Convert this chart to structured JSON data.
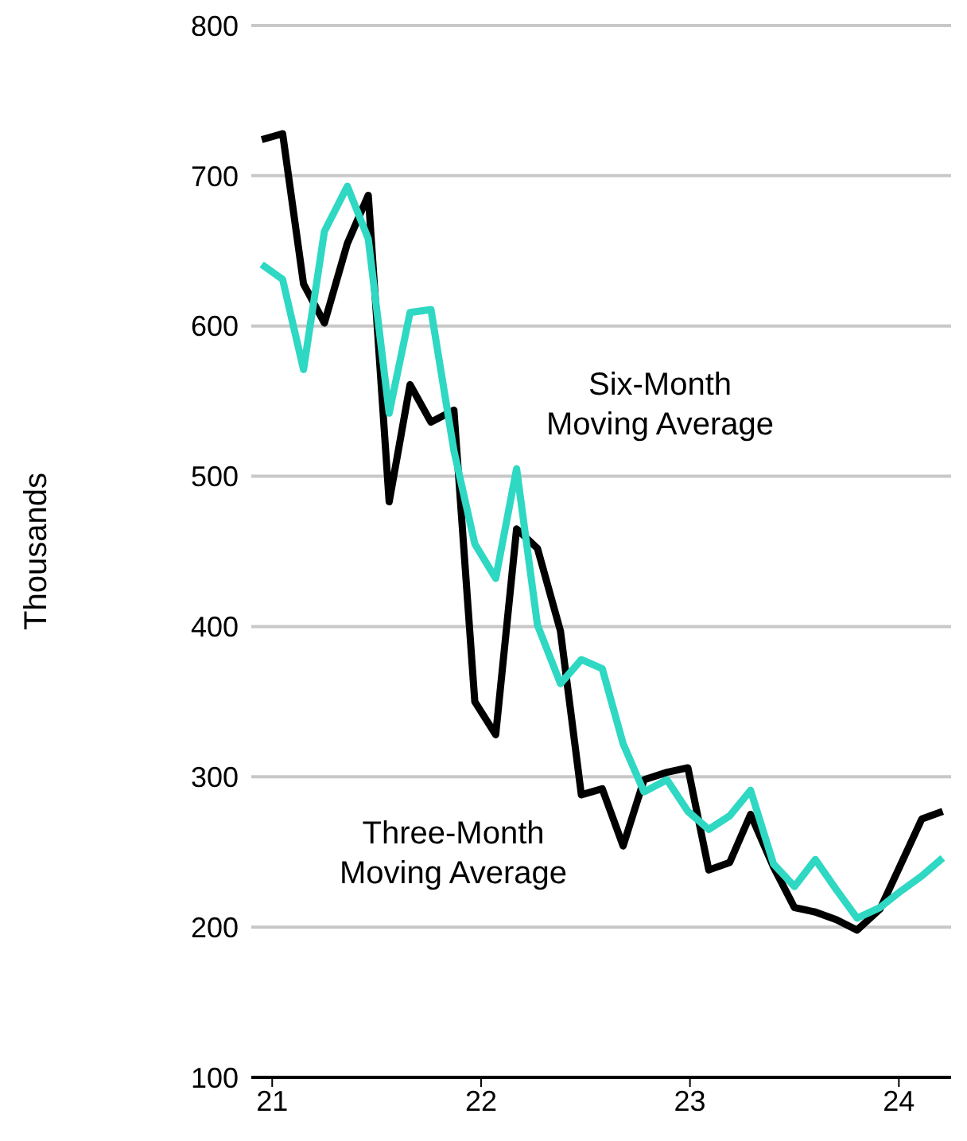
{
  "chart_data": {
    "type": "line",
    "ylabel": "Thousands",
    "x": [
      20.95,
      21.05,
      21.15,
      21.25,
      21.36,
      21.46,
      21.56,
      21.66,
      21.76,
      21.87,
      21.97,
      22.07,
      22.17,
      22.27,
      22.38,
      22.48,
      22.58,
      22.68,
      22.78,
      22.89,
      22.99,
      23.09,
      23.19,
      23.29,
      23.4,
      23.5,
      23.6,
      23.7,
      23.8,
      23.91,
      24.01,
      24.11,
      24.21
    ],
    "series": [
      {
        "color": "#000000",
        "values": [
          724,
          728,
          628,
          602,
          655,
          687,
          483,
          561,
          536,
          544,
          350,
          328,
          465,
          452,
          397,
          288,
          292,
          254,
          298,
          303,
          306,
          238,
          243,
          275,
          240,
          213,
          210,
          205,
          198,
          212,
          242,
          272,
          277
        ]
      },
      {
        "color": "#2ed8c3",
        "values": [
          641,
          631,
          571,
          663,
          693,
          658,
          542,
          609,
          611,
          517,
          455,
          432,
          505,
          401,
          362,
          378,
          372,
          322,
          290,
          298,
          277,
          265,
          274,
          291,
          242,
          227,
          245,
          225,
          206,
          213,
          224,
          234,
          246
        ]
      }
    ],
    "annotations": [
      "Six-Month\nMoving Average",
      "Three-Month\nMoving Average"
    ],
    "xlim": [
      20.9,
      24.25
    ],
    "xticks": [
      21,
      22,
      23,
      24
    ],
    "ylim": [
      100,
      800
    ],
    "yticks": [
      100,
      200,
      300,
      400,
      500,
      600,
      700,
      800
    ],
    "grid": "y",
    "legend": false,
    "marker": "none",
    "line_style": "solid"
  }
}
